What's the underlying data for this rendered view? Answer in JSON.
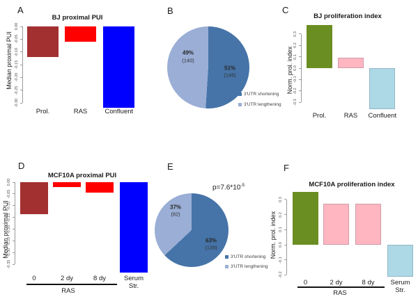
{
  "figure": {
    "background": "#ffffff"
  },
  "panels": {
    "A": {
      "letter": "A"
    },
    "B": {
      "letter": "B"
    },
    "C": {
      "letter": "C"
    },
    "D": {
      "letter": "D"
    },
    "E": {
      "letter": "E"
    },
    "F": {
      "letter": "F"
    }
  },
  "chart_data": {
    "A": {
      "type": "bar",
      "title": "BJ proximal PUI",
      "ylabel": "Median proximal PUI",
      "categories": [
        "Prol.",
        "RAS",
        "Confluent"
      ],
      "values": [
        -0.12,
        -0.06,
        -0.32
      ],
      "colors": [
        "#A33030",
        "#FE0000",
        "#0000FE"
      ],
      "ytick_labels": [
        "0.00",
        "-0.05",
        "-0.10",
        "-0.15",
        "-0.20",
        "-0.25",
        "-0.30"
      ],
      "ytick_values": [
        0,
        -0.05,
        -0.1,
        -0.15,
        -0.2,
        -0.25,
        -0.3
      ],
      "ylim": [
        -0.3,
        0
      ]
    },
    "B": {
      "type": "pie",
      "slices": [
        {
          "label": "3'UTR shortening",
          "pct": 51,
          "count": 146,
          "pct_label": "51%",
          "count_label": "(146)",
          "color": "#4674A8"
        },
        {
          "label": "3'UTR lengthening",
          "pct": 49,
          "count": 140,
          "pct_label": "49%",
          "count_label": "(140)",
          "color": "#9AAED6"
        }
      ],
      "legend_position": "bottom-right"
    },
    "C": {
      "type": "bar",
      "title": "BJ proliferation index",
      "ylabel": "Norm. prol. index",
      "categories": [
        "Prol.",
        "RAS",
        "Confluent"
      ],
      "values": [
        0.38,
        0.09,
        -0.36
      ],
      "colors": [
        "#6B8E23",
        "#FFB6C1",
        "#ADD8E6"
      ],
      "borders": [
        null,
        "#cf9ca9",
        "#92b8c6"
      ],
      "ytick_labels": [
        "0.3",
        "0.2",
        "0.1",
        "0.0",
        "-0.1",
        "-0.2",
        "-0.3"
      ],
      "ytick_values": [
        0.3,
        0.2,
        0.1,
        0,
        -0.1,
        -0.2,
        -0.3
      ],
      "ylim": [
        -0.3,
        0.3
      ]
    },
    "D": {
      "type": "bar",
      "title": "MCF10A proximal PUI",
      "ylabel": "Median proximal PUI",
      "categories": [
        "0",
        "2 dy",
        "8 dy",
        "Serum Str."
      ],
      "values": [
        -0.135,
        -0.02,
        -0.045,
        -0.385
      ],
      "colors": [
        "#A33030",
        "#FE0000",
        "#FE0000",
        "#0000FE"
      ],
      "group_label": "RAS",
      "ytick_labels": [
        "0.00",
        "-0.05",
        "-0.10",
        "-0.15",
        "-0.20",
        "-0.25",
        "-0.30",
        "-0.35"
      ],
      "ytick_values": [
        0,
        -0.05,
        -0.1,
        -0.15,
        -0.2,
        -0.25,
        -0.3,
        -0.35
      ],
      "ylim": [
        -0.35,
        0
      ]
    },
    "E": {
      "type": "pie",
      "annotation": {
        "p_base": "p=7.6*10",
        "p_exp": "-5"
      },
      "slices": [
        {
          "label": "3'UTR shortening",
          "pct": 63,
          "count": 139,
          "pct_label": "63%",
          "count_label": "(139)",
          "color": "#4674A8"
        },
        {
          "label": "3'UTR lengthening",
          "pct": 37,
          "count": 82,
          "pct_label": "37%",
          "count_label": "(82)",
          "color": "#9AAED6"
        }
      ],
      "legend_position": "bottom-right"
    },
    "F": {
      "type": "bar",
      "title": "MCF10A proliferation index",
      "ylabel": "Norm. prol. index",
      "categories": [
        "0",
        "2 dy",
        "8 dy",
        "Serum Str."
      ],
      "values": [
        0.35,
        0.27,
        0.27,
        -0.21
      ],
      "colors": [
        "#6B8E23",
        "#FFB6C1",
        "#FFB6C1",
        "#ADD8E6"
      ],
      "borders": [
        null,
        "#cf9ca9",
        "#cf9ca9",
        "#92b8c6"
      ],
      "group_label": "RAS",
      "ytick_labels": [
        "0.3",
        "0.2",
        "0.1",
        "0.0",
        "-0.1",
        "-0.2"
      ],
      "ytick_values": [
        0.3,
        0.2,
        0.1,
        0,
        -0.1,
        -0.2
      ],
      "ylim": [
        -0.2,
        0.3
      ]
    }
  }
}
